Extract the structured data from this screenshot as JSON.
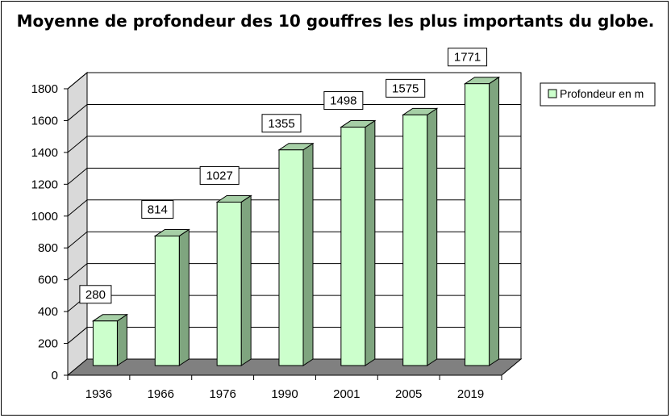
{
  "chart_data": {
    "type": "bar",
    "title": "Moyenne de profondeur des 10 gouffres les plus importants du globe.",
    "xlabel": "",
    "ylabel": "",
    "categories": [
      "1936",
      "1966",
      "1976",
      "1990",
      "2001",
      "2005",
      "2019"
    ],
    "series": [
      {
        "name": "Profondeur en m",
        "values": [
          280,
          814,
          1027,
          1355,
          1498,
          1575,
          1771
        ]
      }
    ],
    "data_labels": [
      "280",
      "814",
      "1027",
      "1355",
      "1498",
      "1575",
      "1771"
    ],
    "y_ticks": [
      "0",
      "200",
      "400",
      "600",
      "800",
      "1000",
      "1200",
      "1400",
      "1600",
      "1800"
    ],
    "ylim": [
      0,
      1800
    ],
    "grid": true,
    "legend_position": "right",
    "style": "3d-column",
    "colors": {
      "bar_front": "#ccffcc",
      "bar_side": "#7fa57f",
      "bar_top": "#a6cfa6",
      "floor": "#808080",
      "back_wall": "#ffffff",
      "side_wall": "#d9d9d9",
      "gridline": "#000000"
    }
  }
}
